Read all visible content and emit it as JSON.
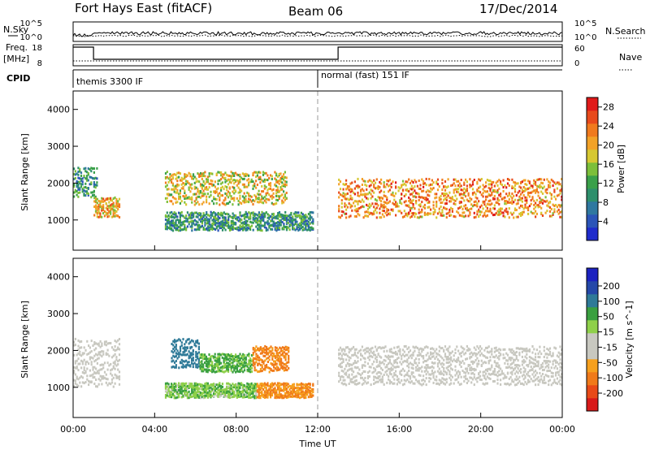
{
  "header": {
    "title": "Fort Hays East (fitACF)",
    "beam": "Beam 06",
    "date": "17/Dec/2014"
  },
  "top_strip": {
    "nsky_label": "N.Sky",
    "nsky_ticks": [
      "10^5",
      "10^0"
    ],
    "nsearch_label": "N.Search",
    "nsearch_ticks": [
      "10^5",
      "10^0"
    ],
    "freq_label_1": "Freq.",
    "freq_label_2": "[MHz]",
    "freq_ticks": [
      "18",
      "8"
    ],
    "nave_label": "Nave",
    "nave_ticks": [
      "60",
      "0"
    ],
    "cpid_label": "CPID",
    "cpid_entries": [
      {
        "text": "themis 3300 IF",
        "start_hour": 0
      },
      {
        "text": "normal (fast) 151 IF",
        "start_hour": 12
      }
    ],
    "freq_steps": [
      {
        "from_hour": 0,
        "to_hour": 1,
        "value": "high"
      },
      {
        "from_hour": 1,
        "to_hour": 13,
        "value": "low"
      },
      {
        "from_hour": 13,
        "to_hour": 24,
        "value": "high"
      }
    ]
  },
  "colors": {
    "power_scale": [
      "#1f2ccc",
      "#2b55b8",
      "#2f78a0",
      "#2e8f6c",
      "#3aa04a",
      "#7cbf3a",
      "#d6c832",
      "#f2a228",
      "#f07a1e",
      "#e84a1c",
      "#e01a1a"
    ],
    "velocity_scale": [
      "#d81a1a",
      "#e84a18",
      "#f07a1a",
      "#f6a01e",
      "#c8c8c0",
      "#c8c8c0",
      "#8fd04a",
      "#3aa040",
      "#2f7a98",
      "#2548a8",
      "#1c22c0"
    ]
  },
  "chart_data": [
    {
      "type": "heatmap",
      "title": "",
      "xlabel": "",
      "ylabel": "Slant Range [km]",
      "xlim": [
        "00:00",
        "24:00"
      ],
      "ylim": [
        180,
        4500
      ],
      "yticks": [
        "1000",
        "2000",
        "3000",
        "4000"
      ],
      "colorbar_label": "Power [dB]",
      "colorbar_ticks": [
        "4",
        "8",
        "12",
        "16",
        "20",
        "24",
        "28"
      ],
      "colorbar_range": [
        0,
        30
      ],
      "features": [
        {
          "name": "early echo band",
          "from_hour": 0,
          "to_hour": 1.2,
          "range_km": [
            1600,
            2400
          ],
          "level_db": 10
        },
        {
          "name": "evening rising band",
          "from_hour": 1.0,
          "to_hour": 2.3,
          "range_km": [
            1050,
            1600
          ],
          "level_db": 20
        },
        {
          "name": "upper arc",
          "from_hour": 4.5,
          "to_hour": 10.5,
          "range_km": [
            1400,
            2300
          ],
          "level_db": 18
        },
        {
          "name": "lower arc",
          "from_hour": 4.5,
          "to_hour": 11.8,
          "range_km": [
            700,
            1200
          ],
          "level_db": 10
        },
        {
          "name": "morning band",
          "from_hour": 13,
          "to_hour": 24,
          "range_km": [
            1050,
            2100
          ],
          "level_db": 22
        }
      ]
    },
    {
      "type": "heatmap",
      "title": "",
      "xlabel": "Time UT",
      "ylabel": "Slant Range [km]",
      "xlim": [
        "00:00",
        "24:00"
      ],
      "ylim": [
        180,
        4500
      ],
      "xticks": [
        "00:00",
        "04:00",
        "08:00",
        "12:00",
        "16:00",
        "20:00",
        "00:00"
      ],
      "yticks": [
        "1000",
        "2000",
        "3000",
        "4000"
      ],
      "colorbar_label": "Velocity [m s^-1]",
      "colorbar_ticks": [
        "200",
        "100",
        "50",
        "15",
        "-15",
        "-50",
        "-100",
        "-200"
      ],
      "colorbar_range": [
        -250,
        250
      ],
      "features": [
        {
          "name": "ground scatter early",
          "from_hour": 0,
          "to_hour": 2.3,
          "range_km": [
            1000,
            2300
          ],
          "velocity": 0
        },
        {
          "name": "blue arc",
          "from_hour": 4.8,
          "to_hour": 6.2,
          "range_km": [
            1500,
            2300
          ],
          "velocity": 150
        },
        {
          "name": "green arc",
          "from_hour": 6.2,
          "to_hour": 8.8,
          "range_km": [
            1400,
            1900
          ],
          "velocity": 60
        },
        {
          "name": "orange patch",
          "from_hour": 8.8,
          "to_hour": 10.6,
          "range_km": [
            1400,
            2100
          ],
          "velocity": -60
        },
        {
          "name": "lower green band",
          "from_hour": 4.5,
          "to_hour": 9,
          "range_km": [
            700,
            1100
          ],
          "velocity": 40
        },
        {
          "name": "lower orange band",
          "from_hour": 9,
          "to_hour": 11.8,
          "range_km": [
            700,
            1100
          ],
          "velocity": -50
        },
        {
          "name": "ground scatter morning",
          "from_hour": 13,
          "to_hour": 24,
          "range_km": [
            1050,
            2100
          ],
          "velocity": 0
        }
      ]
    }
  ]
}
